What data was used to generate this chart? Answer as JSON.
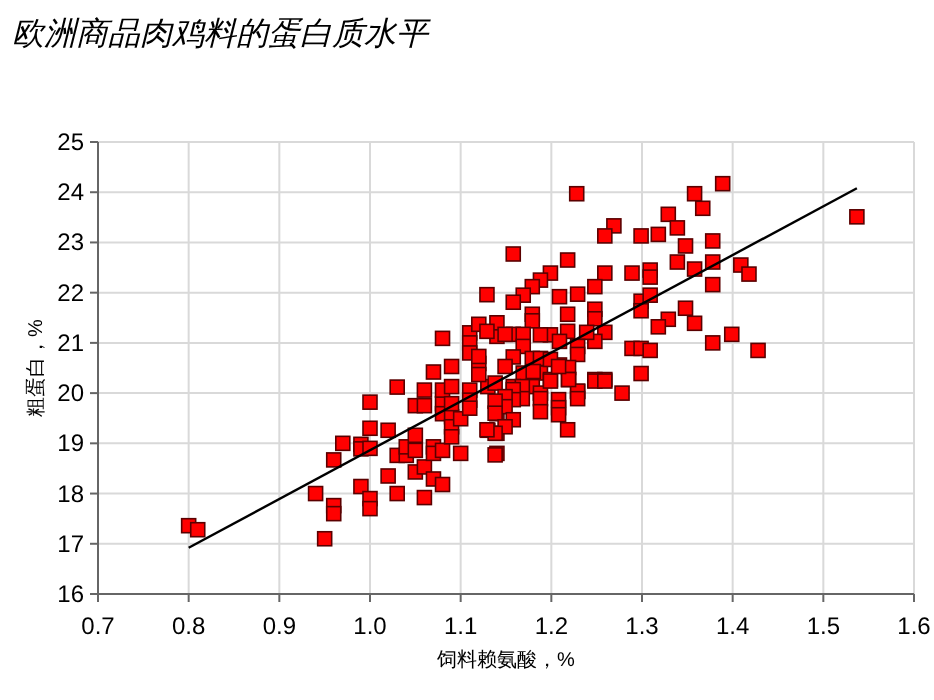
{
  "chart_data": {
    "type": "scatter",
    "title": "欧洲商品肉鸡料的蛋白质水平",
    "xlabel": "饲料赖氨酸，%",
    "ylabel": "粗蛋白，%",
    "xlim": [
      0.7,
      1.6
    ],
    "xticks": [
      0.7,
      0.8,
      0.9,
      {
        "value": 1,
        "label": "1.0"
      },
      1.1,
      1.2,
      1.3,
      1.4,
      1.5,
      1.6
    ],
    "ylim": [
      16,
      25
    ],
    "yticks": [
      16,
      17,
      18,
      19,
      20,
      21,
      22,
      23,
      24,
      25
    ],
    "grid": true,
    "series": [
      {
        "color": "#ff0000",
        "marker": "square",
        "x": [
          0.8,
          0.81,
          0.95,
          0.94,
          0.96,
          0.96,
          0.96,
          0.97,
          0.99,
          0.99,
          0.99,
          1.0,
          1.0,
          1.0,
          1.0,
          1.0,
          1.02,
          1.02,
          1.03,
          1.03,
          1.03,
          1.04,
          1.04,
          1.05,
          1.05,
          1.05,
          1.05,
          1.06,
          1.06,
          1.06,
          1.06,
          1.07,
          1.07,
          1.07,
          1.07,
          1.08,
          1.08,
          1.08,
          1.08,
          1.08,
          1.09,
          1.09,
          1.09,
          1.09,
          1.09,
          1.09,
          1.1,
          1.1,
          1.11,
          1.11,
          1.11,
          1.12,
          1.13,
          1.13,
          1.14,
          1.14,
          1.14,
          1.08,
          1.11,
          1.11,
          1.11,
          1.12,
          1.14,
          1.12,
          1.12,
          1.228,
          1.358,
          1.389,
          1.367,
          1.329,
          1.339,
          1.269,
          1.259,
          1.299,
          1.318,
          1.348,
          1.378,
          1.537,
          1.158,
          1.218,
          1.339,
          1.378,
          1.358,
          1.409,
          1.418,
          1.259,
          1.289,
          1.309,
          1.309,
          1.199,
          1.188,
          1.179,
          1.169,
          1.158,
          1.129,
          1.229,
          1.248,
          1.209,
          1.299,
          1.299,
          1.309,
          1.378,
          1.348,
          1.329,
          1.318,
          1.358,
          1.399,
          1.378,
          1.428,
          1.289,
          1.299,
          1.309,
          1.299,
          1.259,
          1.248,
          1.278,
          1.259,
          1.248,
          1.248,
          1.248,
          1.239,
          1.218,
          1.218,
          1.179,
          1.179,
          1.14,
          1.129,
          1.229,
          1.229,
          1.199,
          1.188,
          1.209,
          1.209,
          1.219,
          1.219,
          1.229,
          1.158,
          1.169,
          1.149,
          1.169,
          1.179,
          1.188,
          1.188,
          1.199,
          1.199,
          1.158,
          1.149,
          1.169,
          1.138,
          1.158,
          1.179,
          1.188,
          1.248,
          1.259,
          1.229,
          1.229,
          1.208,
          1.208,
          1.208,
          1.218,
          1.188,
          1.188,
          1.199,
          1.219,
          1.208,
          1.168,
          1.168,
          1.158,
          1.158,
          1.149,
          1.149,
          1.138,
          1.138,
          1.158,
          1.149,
          1.138,
          1.129,
          1.138,
          1.18
        ],
        "values": [
          17.36,
          17.28,
          17.1,
          18.0,
          17.76,
          17.6,
          18.67,
          19.0,
          18.14,
          18.98,
          18.89,
          19.82,
          19.3,
          18.9,
          17.9,
          17.7,
          19.26,
          18.35,
          20.12,
          18.76,
          18.0,
          18.76,
          18.93,
          19.16,
          19.75,
          18.43,
          18.86,
          20.06,
          19.75,
          18.53,
          17.92,
          20.42,
          18.93,
          18.8,
          18.29,
          19.79,
          19.59,
          20.06,
          18.86,
          18.18,
          20.53,
          20.13,
          19.53,
          19.33,
          19.13,
          19.79,
          18.8,
          19.49,
          20.06,
          19.86,
          19.7,
          20.59,
          20.13,
          19.26,
          19.59,
          19.2,
          18.8,
          21.09,
          21.2,
          21.0,
          20.8,
          21.37,
          21.13,
          20.73,
          20.37,
          23.97,
          23.97,
          24.17,
          23.68,
          23.56,
          23.29,
          23.33,
          23.13,
          23.13,
          23.16,
          22.93,
          23.03,
          23.51,
          22.77,
          22.65,
          22.61,
          22.61,
          22.47,
          22.55,
          22.37,
          22.39,
          22.39,
          22.45,
          22.31,
          22.39,
          22.25,
          22.12,
          21.95,
          21.81,
          21.96,
          21.97,
          22.12,
          21.92,
          21.83,
          21.64,
          21.95,
          22.16,
          21.69,
          21.47,
          21.32,
          21.39,
          21.17,
          21.0,
          20.85,
          20.89,
          20.89,
          20.85,
          20.39,
          20.27,
          20.27,
          20.0,
          21.21,
          21.67,
          21.48,
          21.03,
          21.21,
          21.57,
          21.23,
          21.57,
          21.44,
          21.4,
          21.23,
          20.93,
          20.77,
          21.16,
          21.16,
          21.03,
          20.56,
          20.51,
          20.27,
          20.03,
          21.17,
          21.17,
          21.17,
          20.93,
          20.69,
          20.69,
          20.4,
          20.67,
          20.27,
          20.72,
          20.53,
          20.4,
          20.2,
          20.13,
          20.13,
          20.0,
          20.24,
          20.24,
          20.04,
          19.89,
          19.87,
          19.71,
          19.57,
          19.27,
          19.89,
          19.63,
          20.24,
          20.27,
          20.53,
          20.13,
          19.89,
          20.07,
          19.87,
          19.93,
          19.73,
          19.84,
          19.6,
          19.47,
          19.33,
          19.2,
          19.27,
          18.77,
          20.43
        ]
      },
      {
        "type": "line",
        "color": "#000000",
        "x": [
          0.8,
          1.537
        ],
        "values": [
          16.92,
          24.08
        ]
      }
    ]
  }
}
